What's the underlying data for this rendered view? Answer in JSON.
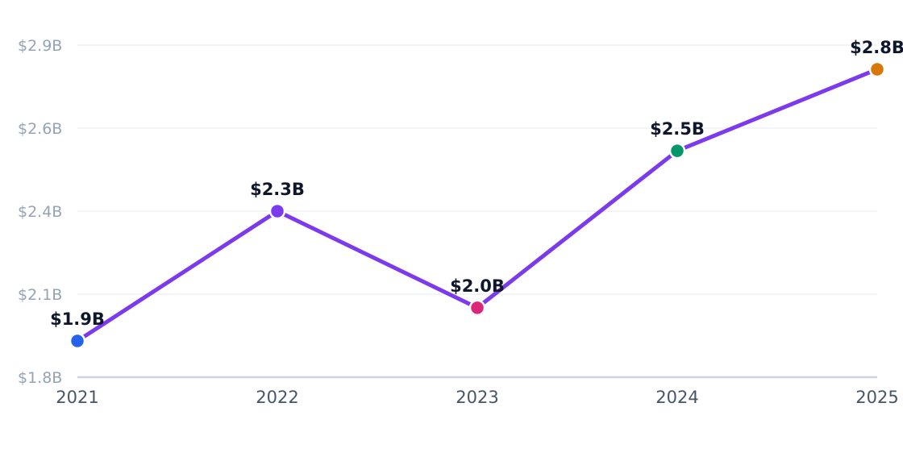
{
  "chart_data": {
    "type": "line",
    "categories": [
      "2021",
      "2022",
      "2023",
      "2024",
      "2025"
    ],
    "series": [
      {
        "values": [
          1.92,
          2.35,
          2.03,
          2.55,
          2.82
        ],
        "labels": [
          "$1.9B",
          "$2.3B",
          "$2.0B",
          "$2.5B",
          "$2.8B"
        ],
        "line_color": "#7c3aed",
        "point_colors": [
          "#2563eb",
          "#7c3aed",
          "#db2777",
          "#059669",
          "#d97706"
        ]
      }
    ],
    "ylim": [
      1.8,
      2.9
    ],
    "yticks": [
      {
        "value": 1.8,
        "label": "$1.8B"
      },
      {
        "value": 2.075,
        "label": "$2.1B"
      },
      {
        "value": 2.35,
        "label": "$2.4B"
      },
      {
        "value": 2.625,
        "label": "$2.6B"
      },
      {
        "value": 2.9,
        "label": "$2.9B"
      }
    ],
    "grid": true,
    "title": "",
    "xlabel": "",
    "ylabel": ""
  }
}
